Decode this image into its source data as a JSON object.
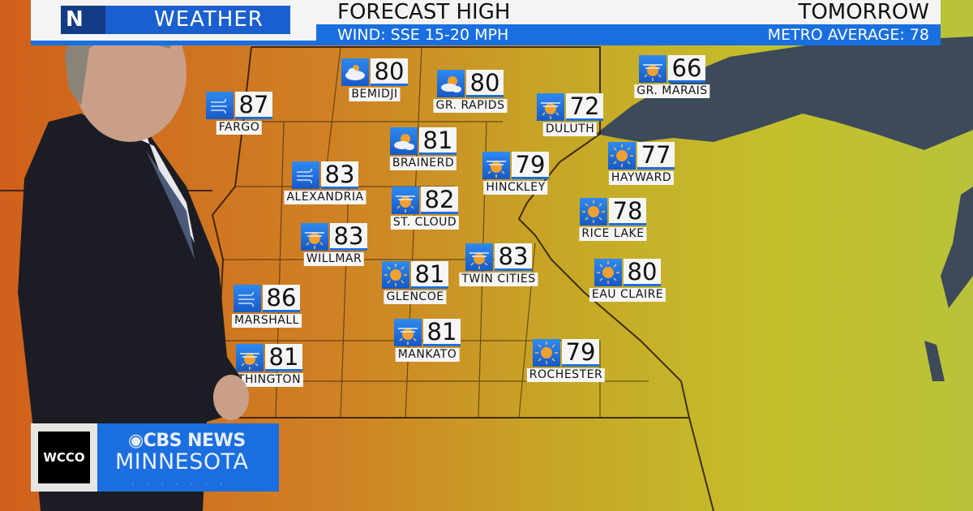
{
  "header": {
    "logo_partial": "N",
    "logo_text": "WEATHER",
    "title": "FORECAST HIGH",
    "day": "TOMORROW",
    "wind": "WIND: SSE 15-20 MPH",
    "metro": "METRO AVERAGE: 78"
  },
  "colors": {
    "accent": "#1a6fe0",
    "map_warm": "#c9741f",
    "map_cool": "#c6c02a",
    "lake": "#3c4a5a"
  },
  "cities": [
    {
      "name": "BEMIDJI",
      "temp": "80",
      "icon": "cloudy-icon"
    },
    {
      "name": "GR. RAPIDS",
      "temp": "80",
      "icon": "partly-cloudy-icon"
    },
    {
      "name": "FARGO",
      "temp": "87",
      "icon": "windy-icon"
    },
    {
      "name": "DULUTH",
      "temp": "72",
      "icon": "hazy-sun-icon"
    },
    {
      "name": "GR. MARAIS",
      "temp": "66",
      "icon": "hazy-sun-icon"
    },
    {
      "name": "BRAINERD",
      "temp": "81",
      "icon": "partly-cloudy-icon"
    },
    {
      "name": "HINCKLEY",
      "temp": "79",
      "icon": "hazy-sun-icon"
    },
    {
      "name": "HAYWARD",
      "temp": "77",
      "icon": "sunny-icon"
    },
    {
      "name": "ALEXANDRIA",
      "temp": "83",
      "icon": "windy-icon"
    },
    {
      "name": "ST. CLOUD",
      "temp": "82",
      "icon": "hazy-sun-icon"
    },
    {
      "name": "RICE LAKE",
      "temp": "78",
      "icon": "sunny-icon"
    },
    {
      "name": "WILLMAR",
      "temp": "83",
      "icon": "hazy-sun-icon"
    },
    {
      "name": "TWIN CITIES",
      "temp": "83",
      "icon": "hazy-sun-icon"
    },
    {
      "name": "GLENCOE",
      "temp": "81",
      "icon": "sunny-icon"
    },
    {
      "name": "EAU CLAIRE",
      "temp": "80",
      "icon": "sunny-icon"
    },
    {
      "name": "MARSHALL",
      "temp": "86",
      "icon": "windy-icon"
    },
    {
      "name": "MANKATO",
      "temp": "81",
      "icon": "hazy-sun-icon"
    },
    {
      "name": "THINGTON",
      "temp": "81",
      "icon": "hazy-sun-icon"
    },
    {
      "name": "ROCHESTER",
      "temp": "79",
      "icon": "sunny-icon"
    }
  ],
  "lower_third": {
    "station": "WCCO",
    "network": "CBS NEWS",
    "region": "MINNESOTA"
  }
}
